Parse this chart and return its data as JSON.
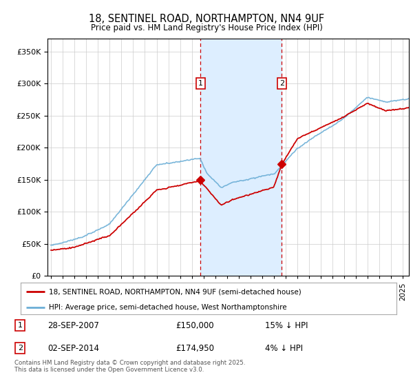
{
  "title": "18, SENTINEL ROAD, NORTHAMPTON, NN4 9UF",
  "subtitle": "Price paid vs. HM Land Registry's House Price Index (HPI)",
  "ytick_vals": [
    0,
    50000,
    100000,
    150000,
    200000,
    250000,
    300000,
    350000
  ],
  "ylim": [
    0,
    370000
  ],
  "xlim_start": 1994.7,
  "xlim_end": 2025.5,
  "sale1_date": 2007.74,
  "sale1_price": 150000,
  "sale1_label": "1",
  "sale1_text": "28-SEP-2007",
  "sale1_price_text": "£150,000",
  "sale1_hpi_text": "15% ↓ HPI",
  "sale2_date": 2014.67,
  "sale2_price": 174950,
  "sale2_label": "2",
  "sale2_text": "02-SEP-2014",
  "sale2_price_text": "£174,950",
  "sale2_hpi_text": "4% ↓ HPI",
  "hpi_color": "#6baed6",
  "price_color": "#cc0000",
  "shade_color": "#ddeeff",
  "legend1": "18, SENTINEL ROAD, NORTHAMPTON, NN4 9UF (semi-detached house)",
  "legend2": "HPI: Average price, semi-detached house, West Northamptonshire",
  "footer": "Contains HM Land Registry data © Crown copyright and database right 2025.\nThis data is licensed under the Open Government Licence v3.0.",
  "background_color": "#ffffff",
  "grid_color": "#cccccc"
}
